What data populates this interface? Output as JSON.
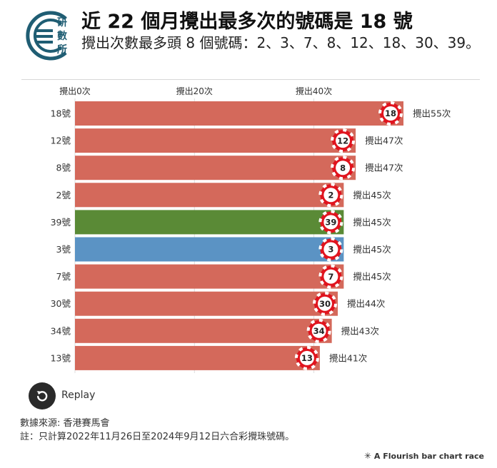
{
  "header": {
    "logo_text": "研數所",
    "title": "近 22 個月攪出最多次的號碼是 18 號",
    "subtitle": "攪出次數最多頭 8 個號碼：2、3、7、8、12、18、30、39。"
  },
  "controls": {
    "replay_label": "Replay"
  },
  "footer": {
    "source": "數據來源: 香港賽馬會",
    "note": "註：只計算2022年11月26日至2024年9月12日六合彩攪珠號碼。",
    "credit": "A Flourish bar chart race"
  },
  "colors": {
    "red": "#d4695b",
    "green": "#5a8a36",
    "blue": "#5b93c4",
    "ball_red": "#e0141e"
  },
  "chart_data": {
    "type": "bar",
    "orientation": "horizontal",
    "title": "近 22 個月攪出最多次的號碼是 18 號",
    "x_ticks": [
      {
        "value": 0,
        "label": "攪出0次"
      },
      {
        "value": 20,
        "label": "攪出20次"
      },
      {
        "value": 40,
        "label": "攪出40次"
      }
    ],
    "xlim": [
      0,
      55
    ],
    "grid": true,
    "value_prefix": "攪出",
    "value_suffix": "次",
    "categories": [
      "18號",
      "12號",
      "8號",
      "2號",
      "39號",
      "3號",
      "7號",
      "30號",
      "34號",
      "13號"
    ],
    "balls": [
      "18",
      "12",
      "8",
      "2",
      "39",
      "3",
      "7",
      "30",
      "34",
      "13"
    ],
    "values": [
      55,
      47,
      47,
      45,
      45,
      45,
      45,
      44,
      43,
      41
    ],
    "bar_colors": [
      "red",
      "red",
      "red",
      "red",
      "green",
      "blue",
      "red",
      "red",
      "red",
      "red"
    ]
  }
}
